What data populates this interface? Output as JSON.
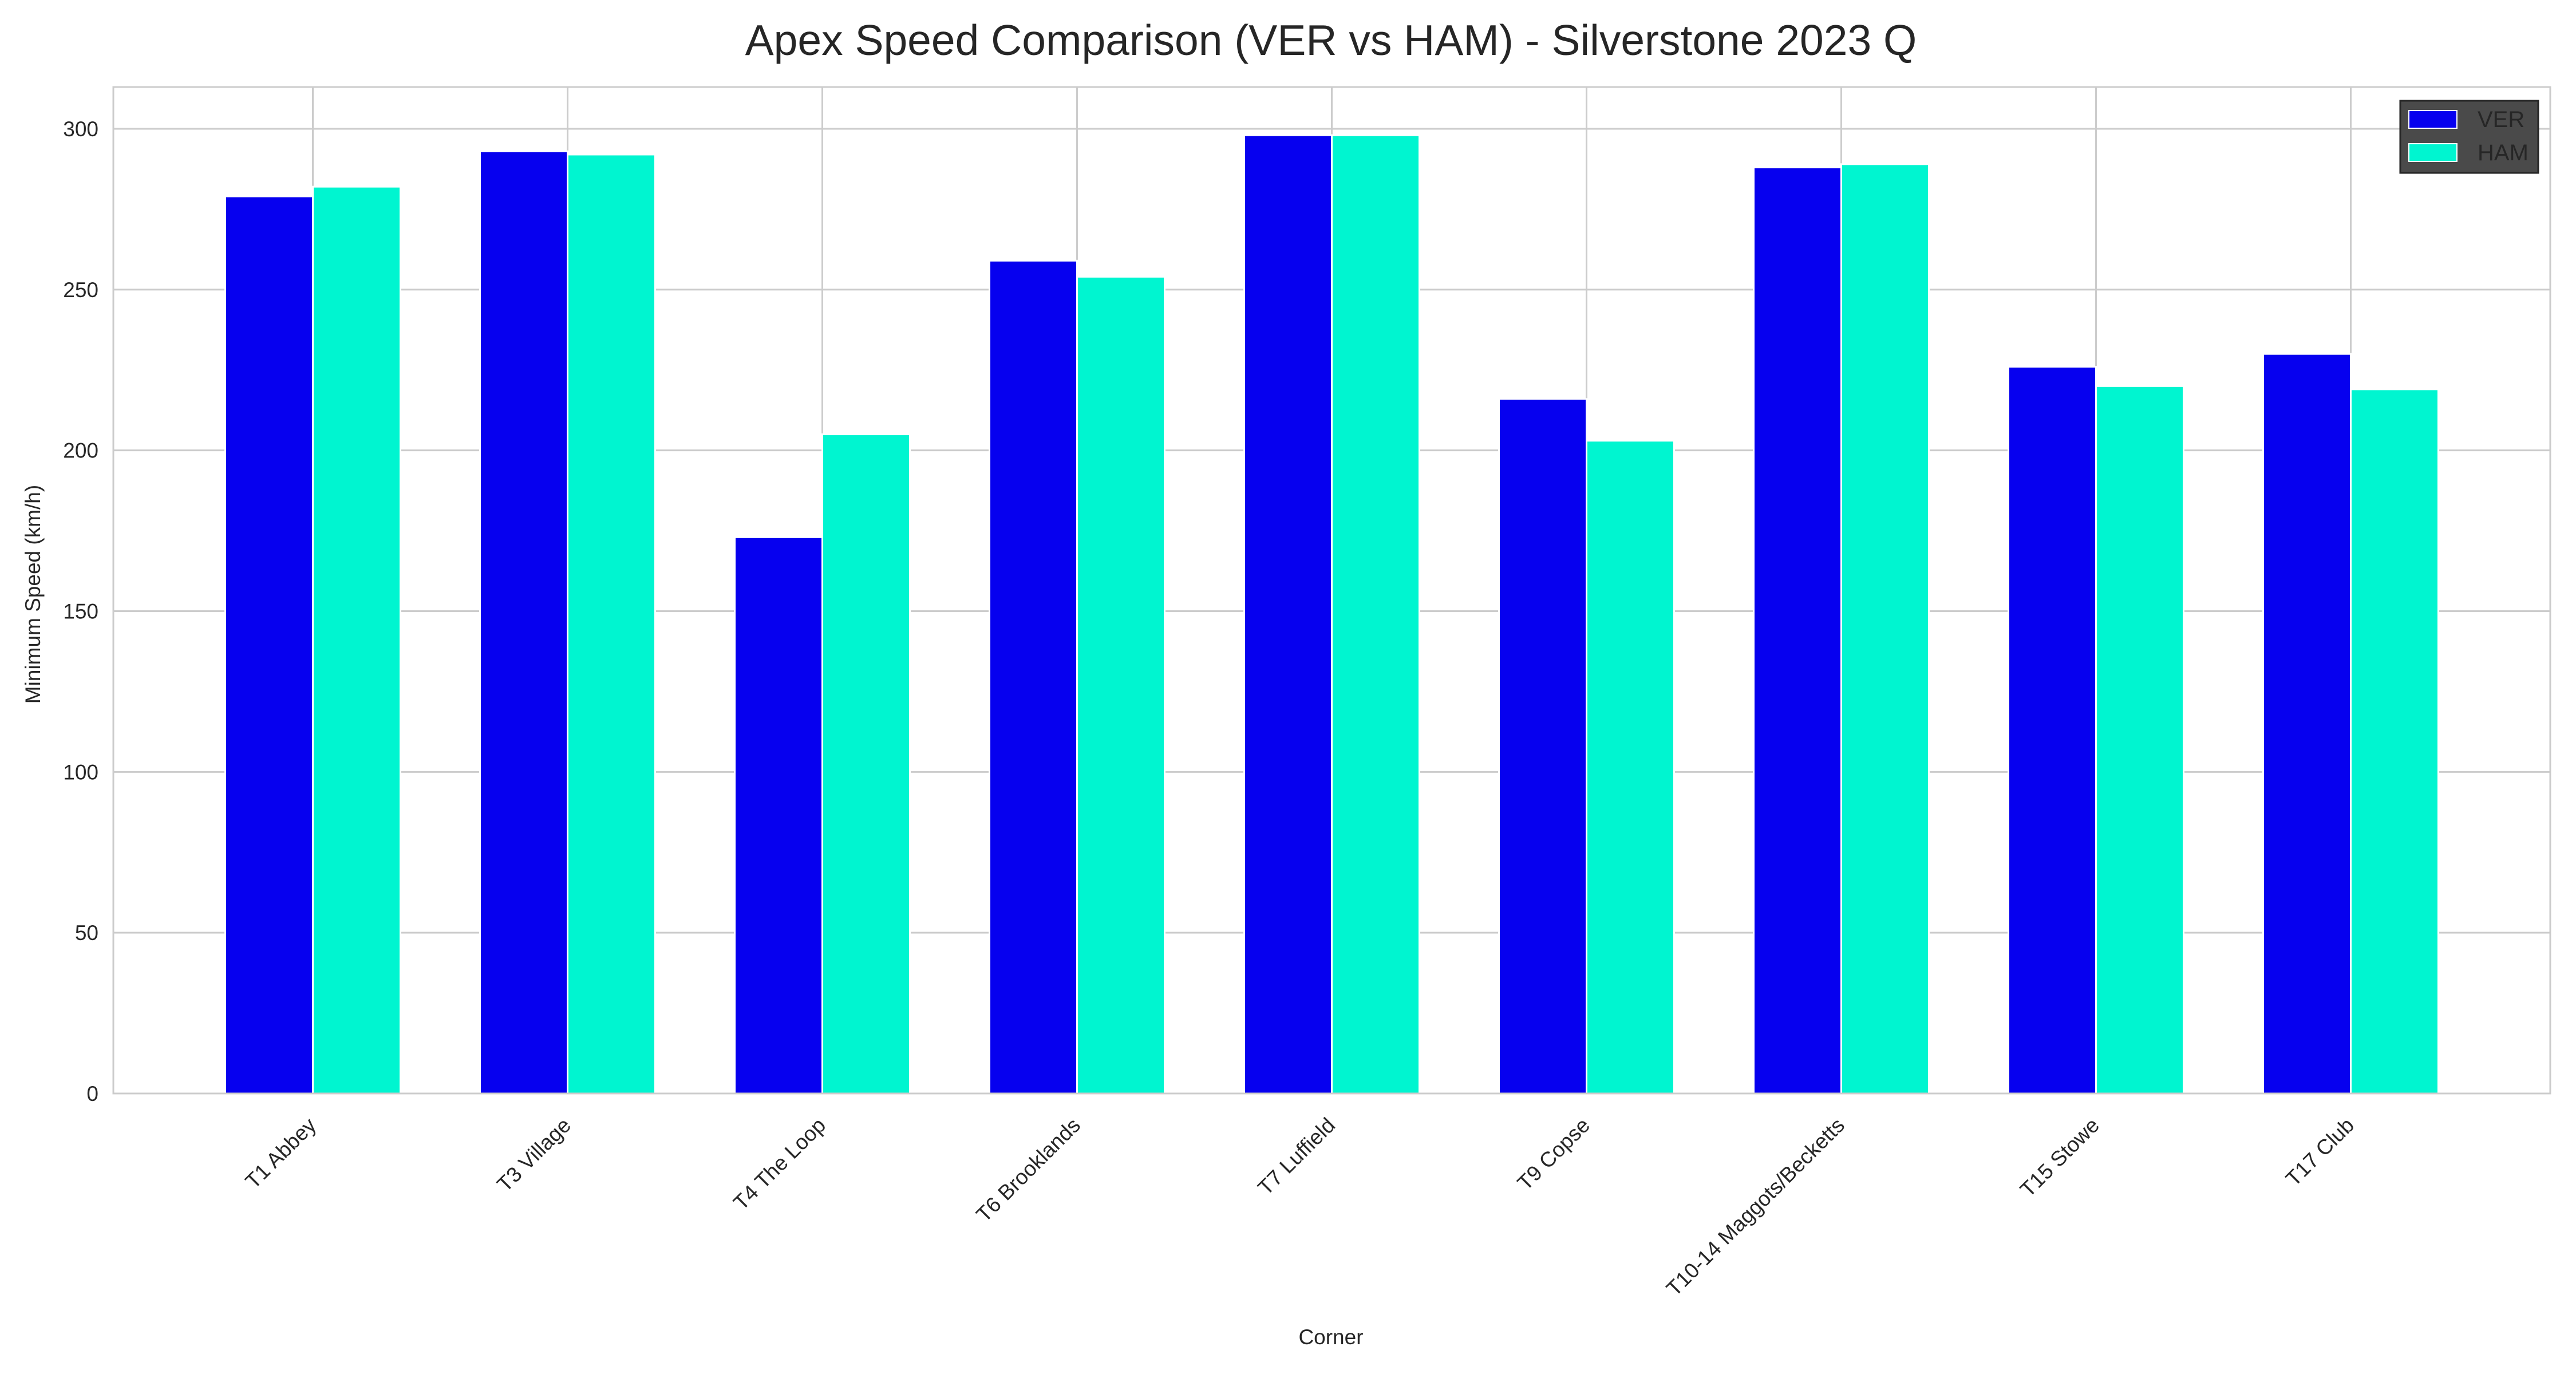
{
  "chart_data": {
    "type": "bar",
    "title": "Apex Speed Comparison (VER vs HAM) - Silverstone 2023 Q",
    "xlabel": "Corner",
    "ylabel": "Minimum Speed (km/h)",
    "ylim": [
      0,
      313
    ],
    "yticks": [
      0,
      50,
      100,
      150,
      200,
      250,
      300
    ],
    "grid": true,
    "legend_position": "top-right",
    "categories": [
      "T1 Abbey",
      "T3 Village",
      "T4 The Loop",
      "T6 Brooklands",
      "T7 Luffield",
      "T9 Copse",
      "T10-14 Maggots/Becketts",
      "T15 Stowe",
      "T17 Club"
    ],
    "series": [
      {
        "name": "VER",
        "color": "#0600EF",
        "values": [
          279,
          293,
          173,
          259,
          298,
          216,
          288,
          226,
          230
        ]
      },
      {
        "name": "HAM",
        "color": "#00F5D0",
        "values": [
          282,
          292,
          205,
          254,
          298,
          203,
          289,
          220,
          219
        ]
      }
    ]
  }
}
